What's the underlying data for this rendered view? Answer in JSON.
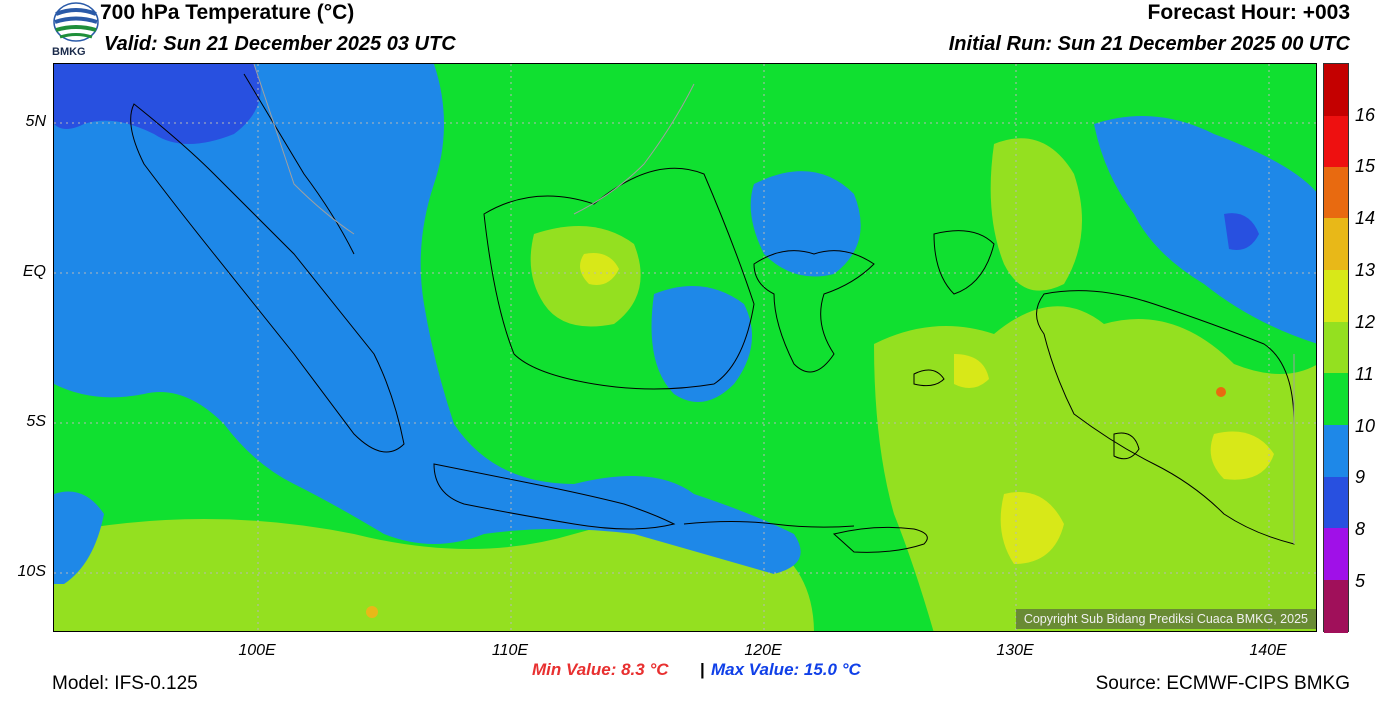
{
  "header": {
    "title": "700 hPa Temperature (°C)",
    "valid": "Valid: Sun 21 December 2025 03 UTC",
    "forecast_hour": "Forecast Hour: +003",
    "initial_run": "Initial Run: Sun 21 December 2025 00 UTC",
    "logo_text": "BMKG"
  },
  "axes": {
    "lat_labels": [
      "5N",
      "EQ",
      "5S",
      "10S"
    ],
    "lon_labels": [
      "100E",
      "110E",
      "120E",
      "130E",
      "140E"
    ]
  },
  "legend": {
    "labels": [
      "16",
      "15",
      "14",
      "13",
      "12",
      "11",
      "10",
      "9",
      "8",
      "5"
    ],
    "colors": [
      "#c40000",
      "#ee1010",
      "#e86a10",
      "#e8b818",
      "#d8e818",
      "#94e020",
      "#10e030",
      "#1e88e8",
      "#2850e0",
      "#a010e8",
      "#a0105a"
    ]
  },
  "stats": {
    "min": "Min Value: 8.3 °C",
    "separator": "|",
    "max": "Max Value: 15.0 °C",
    "min_color": "#e83030",
    "max_color": "#1040e8"
  },
  "footer": {
    "model": "Model: IFS-0.125",
    "source": "Source: ECMWF-CIPS BMKG",
    "copyright": "Copyright Sub Bidang Prediksi Cuaca BMKG, 2025"
  }
}
